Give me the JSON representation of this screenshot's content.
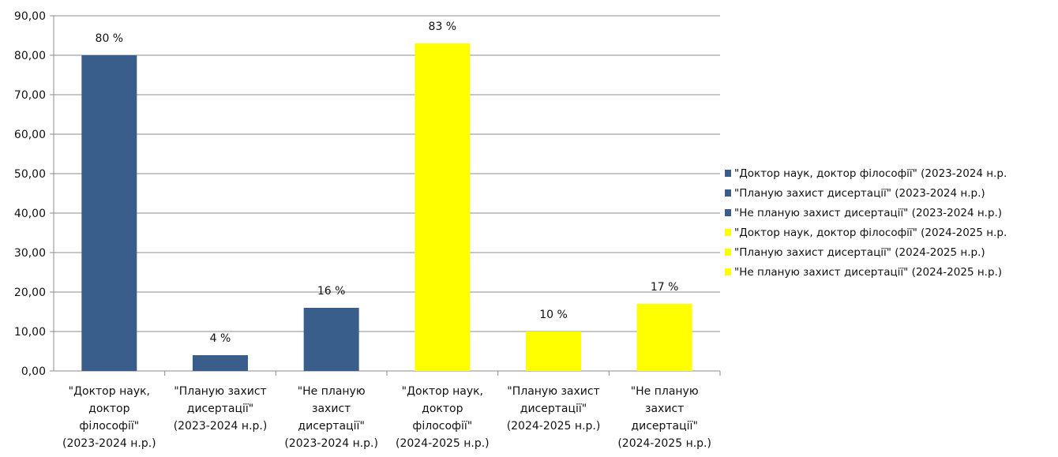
{
  "chart_data": {
    "type": "bar",
    "title": "",
    "xlabel": "",
    "ylabel": "",
    "ylim": [
      0,
      90
    ],
    "yticks": [
      "0,00",
      "10,00",
      "20,00",
      "30,00",
      "40,00",
      "50,00",
      "60,00",
      "70,00",
      "80,00",
      "90,00"
    ],
    "grid": true,
    "legend_position": "right",
    "colors": {
      "series_2023": "#3a5e8c",
      "series_2024": "#ffff00"
    },
    "categories": [
      {
        "lines": [
          "\"Доктор наук,",
          "доктор",
          "філософії\"",
          "(2023-2024 н.р.)"
        ],
        "value": 80,
        "label": "80 %",
        "color": "#3a5e8c"
      },
      {
        "lines": [
          "\"Планую захист",
          "дисертації\"",
          "(2023-2024 н.р.)"
        ],
        "value": 4,
        "label": "4 %",
        "color": "#3a5e8c"
      },
      {
        "lines": [
          "\"Не планую",
          "захист",
          "дисертації\"",
          "(2023-2024 н.р.)"
        ],
        "value": 16,
        "label": "16 %",
        "color": "#3a5e8c"
      },
      {
        "lines": [
          "\"Доктор наук,",
          "доктор",
          "філософії\"",
          "(2024-2025 н.р.)"
        ],
        "value": 83,
        "label": "83 %",
        "color": "#ffff00"
      },
      {
        "lines": [
          "\"Планую захист",
          "дисертації\"",
          "(2024-2025 н.р.)"
        ],
        "value": 10,
        "label": "10 %",
        "color": "#ffff00"
      },
      {
        "lines": [
          "\"Не планую",
          "захист",
          "дисертації\"",
          "(2024-2025 н.р.)"
        ],
        "value": 17,
        "label": "17 %",
        "color": "#ffff00"
      }
    ],
    "legend": [
      {
        "text": "\"Доктор наук, доктор філософії\"    (2023-2024 н.р.",
        "color": "#3a5e8c"
      },
      {
        "text": "\"Планую захист дисертації\" (2023-2024 н.р.)",
        "color": "#3a5e8c"
      },
      {
        "text": "\"Не планую захист дисертації\"    (2023-2024 н.р.)",
        "color": "#3a5e8c"
      },
      {
        "text": "\"Доктор наук, доктор філософії\"    (2024-2025 н.р.",
        "color": "#ffff00"
      },
      {
        "text": "\"Планую захист дисертації\" (2024-2025 н.р.)",
        "color": "#ffff00"
      },
      {
        "text": "\"Не планую захист дисертації\"    (2024-2025 н.р.)",
        "color": "#ffff00"
      }
    ]
  }
}
